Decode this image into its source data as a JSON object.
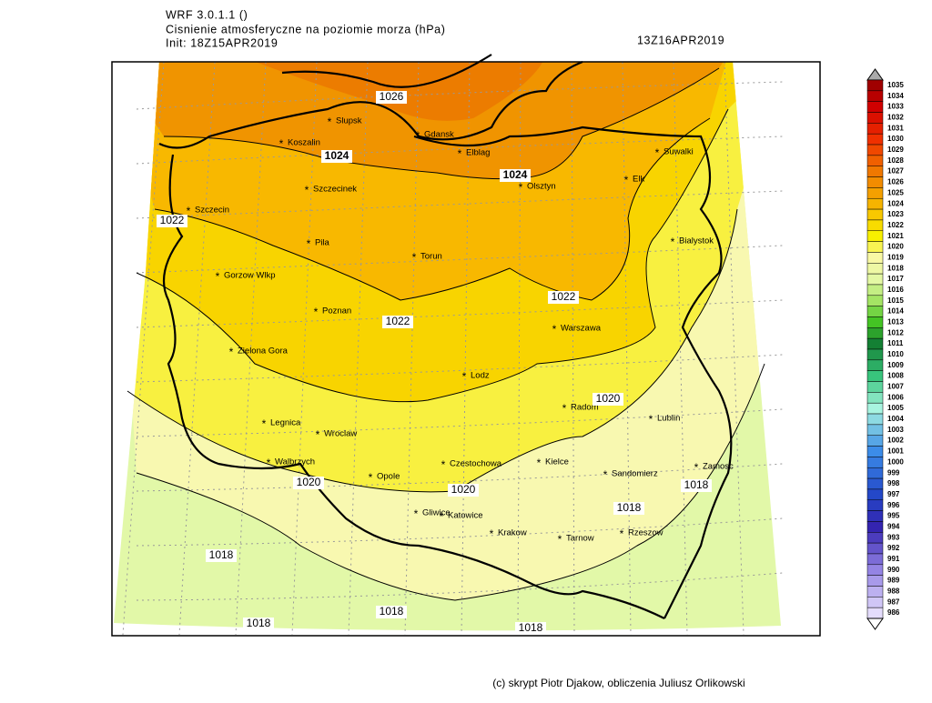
{
  "header": {
    "model": "WRF 3.0.1.1 ()",
    "title": "Cisnienie atmosferyczne na poziomie morza (hPa)",
    "init": "Init: 18Z15APR2019",
    "valid": "13Z16APR2019"
  },
  "cities": [
    "Slupsk",
    "Gdansk",
    "Koszalin",
    "Elblag",
    "Suwalki",
    "Szczecinek",
    "Olsztyn",
    "Elk",
    "Szczecin",
    "Pila",
    "Torun",
    "Bialystok",
    "Gorzow Wlkp",
    "Poznan",
    "Warszawa",
    "Zielona Gora",
    "Lodz",
    "Radom",
    "Legnica",
    "Wroclaw",
    "Lublin",
    "Walbrzych",
    "Opole",
    "Czestochowa",
    "Kielce",
    "Sandomierz",
    "Zamosc",
    "Gliwice",
    "Katowice",
    "Krakow",
    "Tarnow",
    "Rzeszow"
  ],
  "contour_labels": [
    "1026",
    "1024",
    "1024",
    "1022",
    "1022",
    "1022",
    "1020",
    "1020",
    "1020",
    "1018",
    "1018",
    "1018",
    "1018",
    "1018",
    "1018"
  ],
  "colorbar": {
    "levels": [
      1035,
      1034,
      1033,
      1032,
      1031,
      1030,
      1029,
      1028,
      1027,
      1026,
      1025,
      1024,
      1023,
      1022,
      1021,
      1020,
      1019,
      1018,
      1017,
      1016,
      1015,
      1014,
      1013,
      1012,
      1011,
      1010,
      1009,
      1008,
      1007,
      1006,
      1005,
      1004,
      1003,
      1002,
      1001,
      1000,
      999,
      998,
      997,
      996,
      995,
      994,
      993,
      992,
      991,
      990,
      989,
      988,
      987,
      986
    ]
  },
  "footer": "(c) skrypt Piotr Djakow, obliczenia Juliusz Orlikowski"
}
